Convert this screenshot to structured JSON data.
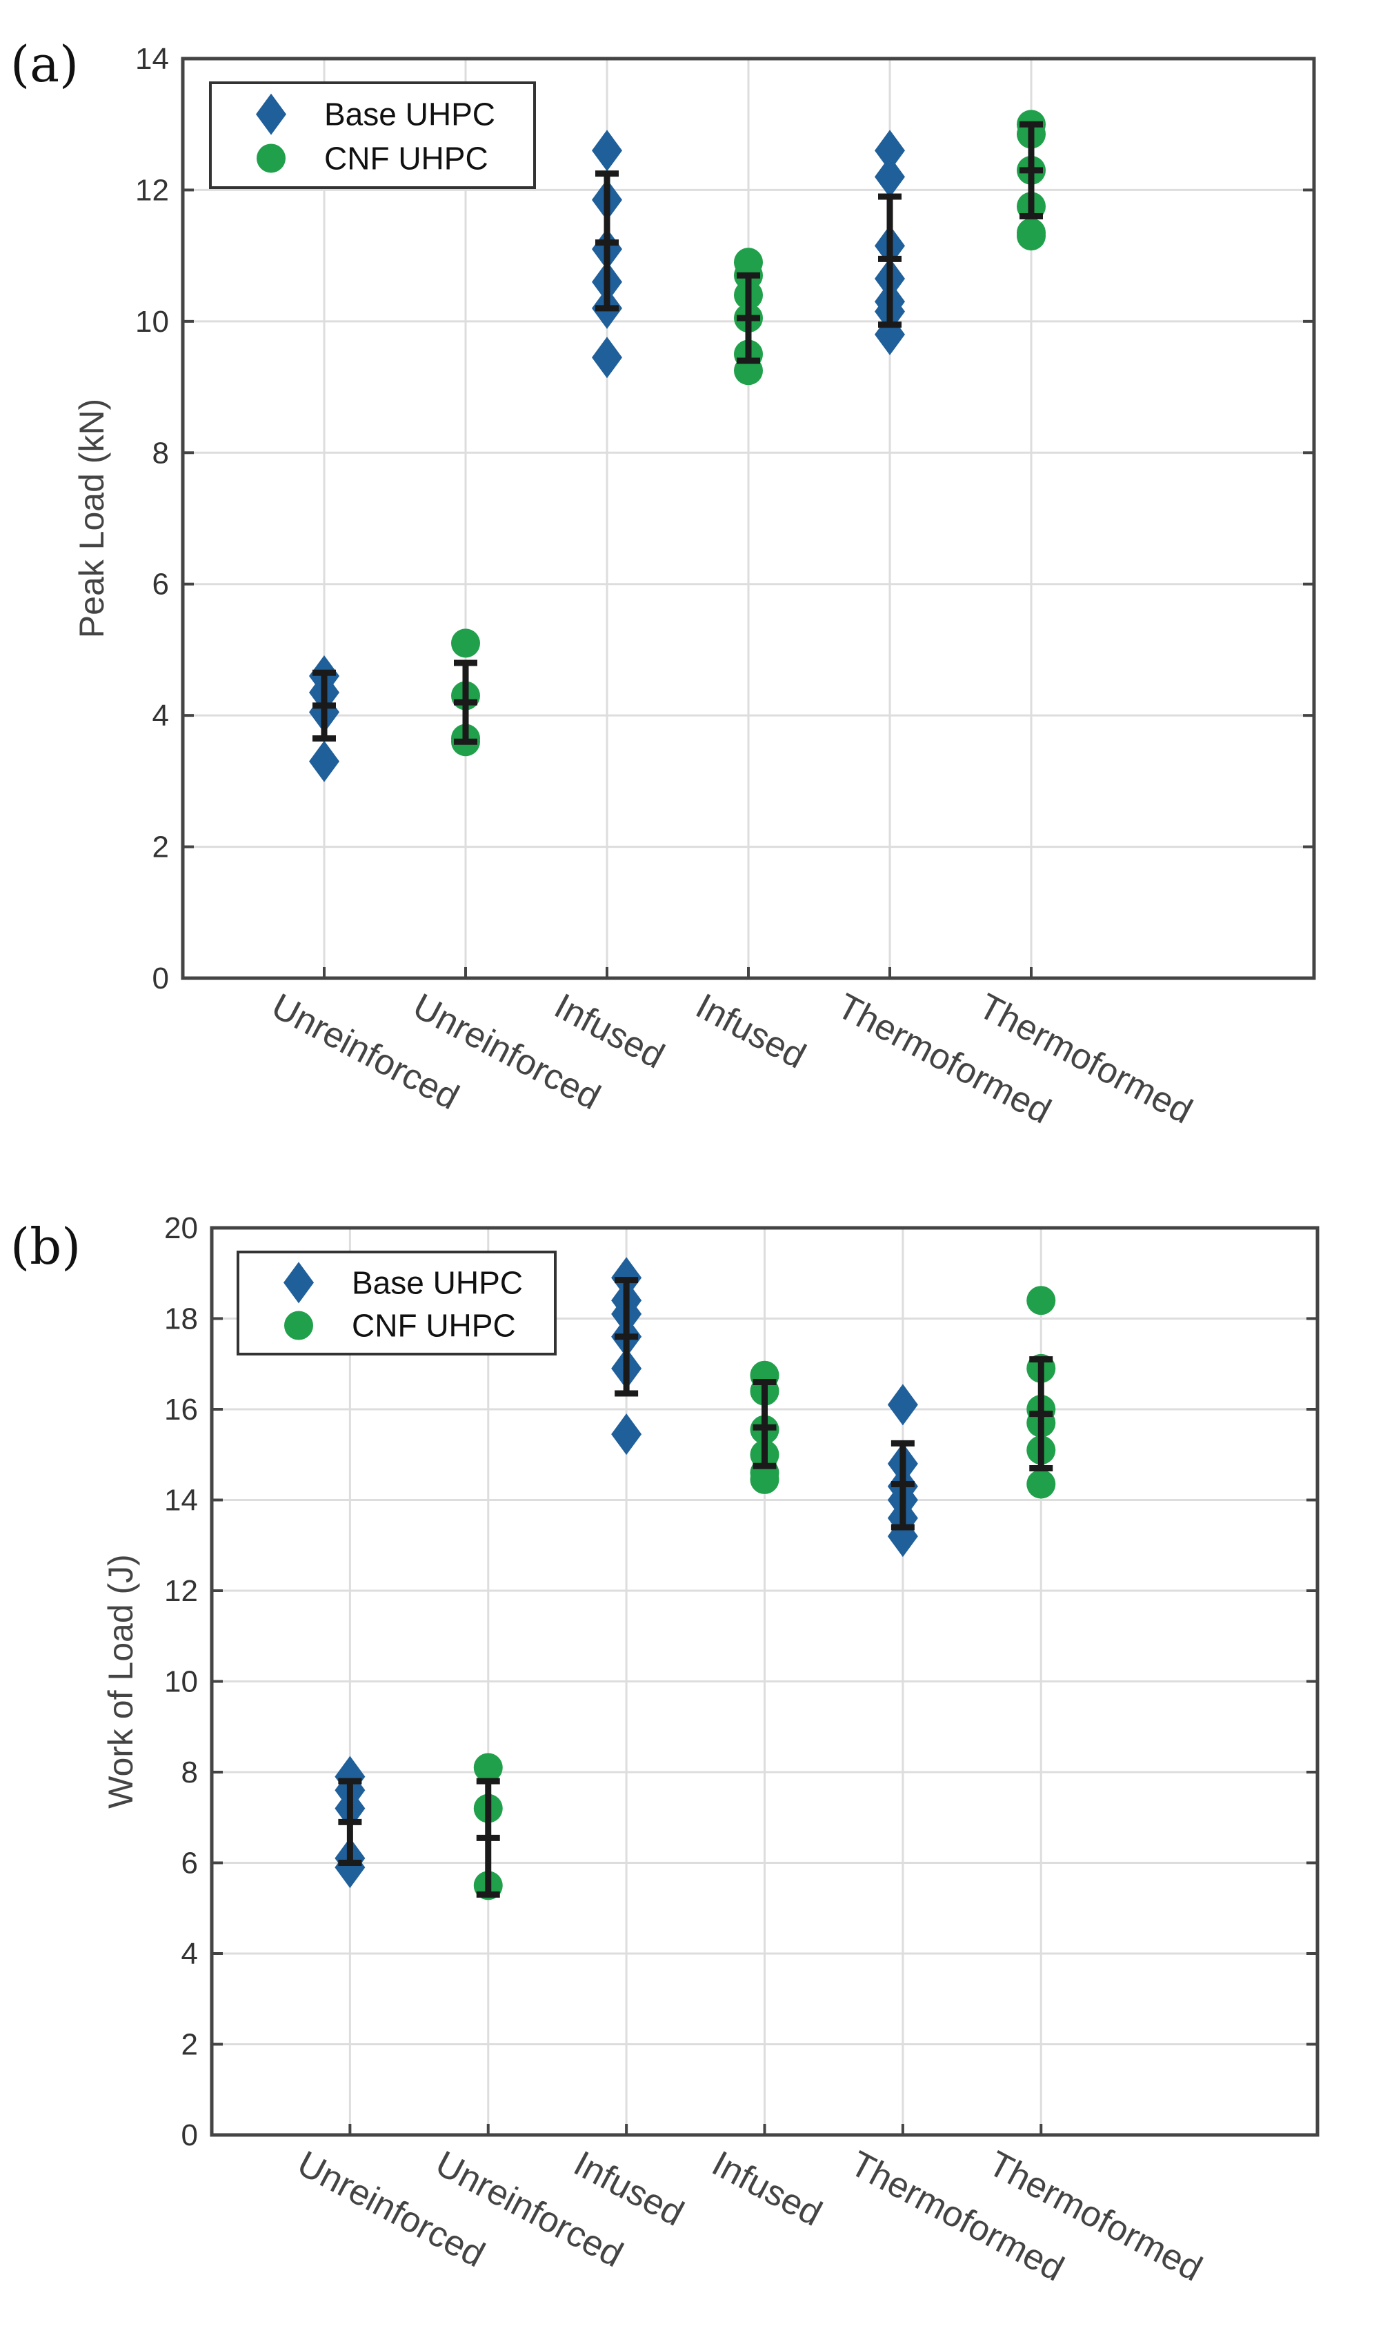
{
  "colors": {
    "base": "#1f5f9a",
    "cnf": "#20a04a",
    "errorbar": "#1a1a1a"
  },
  "legend": {
    "base": "Base UHPC",
    "cnf": "CNF UHPC",
    "base_icon": "diamond-icon",
    "cnf_icon": "circle-icon"
  },
  "chart_data": [
    {
      "panel": "(a)",
      "type": "scatter",
      "ylabel": "Peak Load (kN)",
      "xlabel": "",
      "ylim": [
        0,
        14
      ],
      "yticks": [
        0,
        2,
        4,
        6,
        8,
        10,
        12,
        14
      ],
      "ytick_labels": [
        "0",
        "2",
        "4",
        "6",
        "8",
        "10",
        "12",
        "14"
      ],
      "grid": true,
      "legend_position": "top-left",
      "categories": [
        "Unreinforced",
        "Unreinforced",
        "Infused",
        "Infused",
        "Thermoformed",
        "Thermoformed"
      ],
      "groups": [
        {
          "category": "Unreinforced",
          "series": "base",
          "points": [
            3.3,
            4.05,
            4.35,
            4.6
          ],
          "mean": 4.15,
          "err_low": 3.65,
          "err_high": 4.65
        },
        {
          "category": "Unreinforced",
          "series": "cnf",
          "points": [
            3.6,
            3.65,
            4.3,
            5.1
          ],
          "mean": 4.2,
          "err_low": 3.6,
          "err_high": 4.8
        },
        {
          "category": "Infused",
          "series": "base",
          "points": [
            9.45,
            10.2,
            10.6,
            11.1,
            11.85,
            12.6
          ],
          "mean": 11.2,
          "err_low": 10.2,
          "err_high": 12.25
        },
        {
          "category": "Infused",
          "series": "cnf",
          "points": [
            9.25,
            9.5,
            10.05,
            10.4,
            10.7,
            10.9
          ],
          "mean": 10.05,
          "err_low": 9.4,
          "err_high": 10.7
        },
        {
          "category": "Thermoformed",
          "series": "base",
          "points": [
            9.8,
            10.15,
            10.3,
            10.65,
            11.15,
            12.2,
            12.6
          ],
          "mean": 10.95,
          "err_low": 9.95,
          "err_high": 11.9
        },
        {
          "category": "Thermoformed",
          "series": "cnf",
          "points": [
            11.3,
            11.35,
            11.75,
            12.3,
            12.85,
            13.0
          ],
          "mean": 12.3,
          "err_low": 11.6,
          "err_high": 13.0
        }
      ]
    },
    {
      "panel": "(b)",
      "type": "scatter",
      "ylabel": "Work of Load (J)",
      "xlabel": "",
      "ylim": [
        0,
        20
      ],
      "yticks": [
        0,
        2,
        4,
        6,
        8,
        10,
        12,
        14,
        16,
        18,
        20
      ],
      "ytick_labels": [
        "0",
        "2",
        "4",
        "6",
        "8",
        "10",
        "12",
        "14",
        "16",
        "18",
        "20"
      ],
      "grid": true,
      "legend_position": "top-left",
      "categories": [
        "Unreinforced",
        "Unreinforced",
        "Infused",
        "Infused",
        "Thermoformed",
        "Thermoformed"
      ],
      "groups": [
        {
          "category": "Unreinforced",
          "series": "base",
          "points": [
            5.9,
            6.1,
            7.2,
            7.6,
            7.9
          ],
          "mean": 6.9,
          "err_low": 6.0,
          "err_high": 7.8
        },
        {
          "category": "Unreinforced",
          "series": "cnf",
          "points": [
            5.5,
            7.2,
            8.1
          ],
          "mean": 6.55,
          "err_low": 5.3,
          "err_high": 7.8
        },
        {
          "category": "Infused",
          "series": "base",
          "points": [
            15.45,
            16.9,
            17.6,
            18.1,
            18.4,
            18.9
          ],
          "mean": 17.6,
          "err_low": 16.35,
          "err_high": 18.85
        },
        {
          "category": "Infused",
          "series": "cnf",
          "points": [
            14.45,
            14.6,
            15.0,
            15.55,
            16.4,
            16.75
          ],
          "mean": 15.6,
          "err_low": 14.75,
          "err_high": 16.6
        },
        {
          "category": "Thermoformed",
          "series": "base",
          "points": [
            13.2,
            13.6,
            14.0,
            14.3,
            14.8,
            16.1
          ],
          "mean": 14.35,
          "err_low": 13.4,
          "err_high": 15.25
        },
        {
          "category": "Thermoformed",
          "series": "cnf",
          "points": [
            14.35,
            15.1,
            15.7,
            16.0,
            16.9,
            18.4
          ],
          "mean": 15.9,
          "err_low": 14.7,
          "err_high": 17.1
        }
      ]
    }
  ]
}
